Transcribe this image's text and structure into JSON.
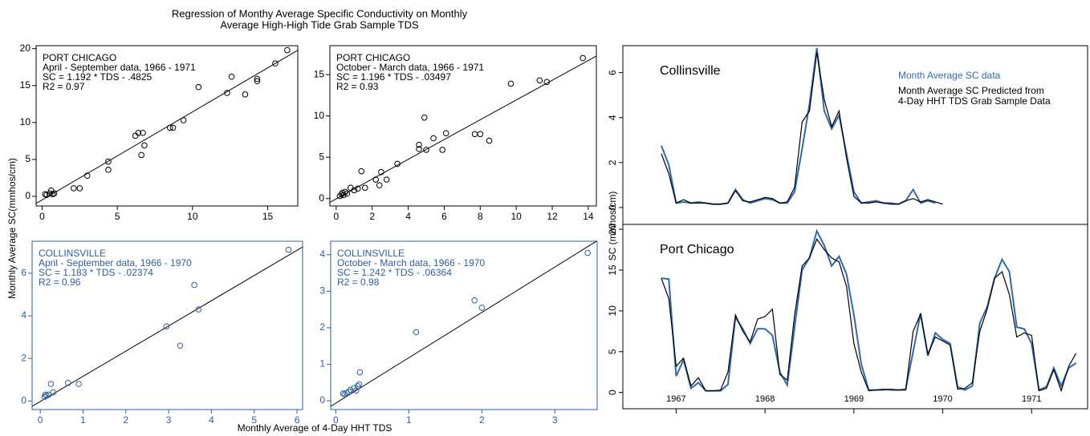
{
  "title": [
    "Regression of Monthy Average Specific Conductivity on Monthly",
    "Average High-High Tide Grab Sample TDS"
  ],
  "y_label": "Monthly Average SC(mmhos/cm)",
  "x_label": "Monthly Average of 4-Day HHT TDS",
  "y_label_right": "SC (mmhos/cm)",
  "chart_data": [
    {
      "type": "scatter",
      "color": "#000000",
      "axis_color": "#000000",
      "annotations": [
        "PORT CHICAGO",
        "April - September data, 1966 - 1971",
        "SC = 1.192 * TDS - .4825",
        "R2 = 0.97"
      ],
      "fit": {
        "slope": 1.192,
        "intercept": -0.4825
      },
      "xlim": [
        -0.4,
        17
      ],
      "ylim": [
        -1.3,
        20.4
      ],
      "xticks": [
        0,
        5,
        10,
        15
      ],
      "yticks": [
        0,
        5,
        10,
        15,
        20
      ],
      "x": [
        0.2,
        0.3,
        0.5,
        0.6,
        0.7,
        0.8,
        2.1,
        2.5,
        3.0,
        4.4,
        4.4,
        6.2,
        6.4,
        6.6,
        6.7,
        6.8,
        8.5,
        8.7,
        9.4,
        10.4,
        12.3,
        12.6,
        13.5,
        14.3,
        14.3,
        15.5,
        16.3
      ],
      "values": [
        0.3,
        0.2,
        0.4,
        0.8,
        0.3,
        0.4,
        1.1,
        1.1,
        2.8,
        3.6,
        4.7,
        8.2,
        8.6,
        5.6,
        8.6,
        6.9,
        9.3,
        9.3,
        10.3,
        14.8,
        14.0,
        16.2,
        13.8,
        15.6,
        15.9,
        18.0,
        19.8
      ]
    },
    {
      "type": "scatter",
      "color": "#000000",
      "axis_color": "#000000",
      "annotations": [
        "PORT CHICAGO",
        "October - March data, 1966 - 1971",
        "SC = 1.196 * TDS - .03497",
        "R2 = 0.93"
      ],
      "fit": {
        "slope": 1.196,
        "intercept": -0.03497
      },
      "xlim": [
        -0.35,
        14.45
      ],
      "ylim": [
        -0.9,
        18.5
      ],
      "xticks": [
        0,
        2,
        4,
        6,
        8,
        10,
        12,
        14
      ],
      "yticks": [
        0,
        5,
        10,
        15
      ],
      "x": [
        0.2,
        0.3,
        0.35,
        0.4,
        0.5,
        0.6,
        0.8,
        1.0,
        1.2,
        1.4,
        1.6,
        2.2,
        2.4,
        2.5,
        2.8,
        3.4,
        4.6,
        4.6,
        4.9,
        5.0,
        5.4,
        5.9,
        6.1,
        7.7,
        8.0,
        8.5,
        9.7,
        11.3,
        11.7,
        13.7
      ],
      "values": [
        0.3,
        0.5,
        0.7,
        0.4,
        0.8,
        0.6,
        1.3,
        1.0,
        1.2,
        3.3,
        1.3,
        2.3,
        1.6,
        3.2,
        2.3,
        4.2,
        6.5,
        6.0,
        9.8,
        5.9,
        7.3,
        5.9,
        7.9,
        7.8,
        7.8,
        7.0,
        13.9,
        14.3,
        14.1,
        17.0
      ]
    },
    {
      "type": "scatter",
      "color": "#2f5f9e",
      "axis_color": "#2f5f9e",
      "annotations": [
        "COLLINSVILLE",
        "April - September data, 1966 - 1970",
        "SC = 1.183 * TDS - .02374",
        "R2 = 0.96"
      ],
      "fit": {
        "slope": 1.183,
        "intercept": -0.02374
      },
      "xlim": [
        -0.19,
        6.13
      ],
      "ylim": [
        -0.4,
        7.5
      ],
      "xticks": [
        0,
        1,
        2,
        3,
        4,
        5,
        6
      ],
      "yticks": [
        0,
        2,
        4,
        6
      ],
      "x": [
        0.1,
        0.12,
        0.15,
        0.2,
        0.25,
        0.3,
        0.65,
        0.9,
        2.95,
        3.27,
        3.6,
        3.7,
        5.8
      ],
      "values": [
        0.2,
        0.3,
        0.25,
        0.3,
        0.8,
        0.4,
        0.85,
        0.8,
        3.5,
        2.6,
        5.45,
        4.3,
        7.1
      ]
    },
    {
      "type": "scatter",
      "color": "#2f5f9e",
      "axis_color": "#2f5f9e",
      "annotations": [
        "COLLINSVILLE",
        "October - March data, 1966 - 1970",
        "SC = 1.242 * TDS - .06364",
        "R2 = 0.98"
      ],
      "fit": {
        "slope": 1.242,
        "intercept": -0.06364
      },
      "xlim": [
        -0.07,
        3.58
      ],
      "ylim": [
        -0.24,
        4.37
      ],
      "xticks": [
        0,
        1,
        2,
        3
      ],
      "yticks": [
        0,
        1,
        2,
        3,
        4
      ],
      "x": [
        0.1,
        0.12,
        0.15,
        0.18,
        0.2,
        0.25,
        0.28,
        0.3,
        0.32,
        0.33,
        1.1,
        1.9,
        2.0,
        3.45
      ],
      "values": [
        0.2,
        0.18,
        0.22,
        0.25,
        0.3,
        0.35,
        0.28,
        0.4,
        0.45,
        0.78,
        1.88,
        2.75,
        2.55,
        4.05
      ]
    },
    {
      "type": "line",
      "label": "Collinsville",
      "legend": "upper right",
      "xlim": [
        1966.4,
        1971.63
      ],
      "ylim": [
        -0.75,
        7.2
      ],
      "yticks": [
        0,
        2,
        4,
        6
      ],
      "x": [
        1966.833,
        1966.917,
        1967.0,
        1967.083,
        1967.167,
        1967.25,
        1967.333,
        1967.417,
        1967.5,
        1967.583,
        1967.667,
        1967.75,
        1967.833,
        1967.917,
        1968.0,
        1968.083,
        1968.167,
        1968.25,
        1968.333,
        1968.417,
        1968.5,
        1968.583,
        1968.667,
        1968.75,
        1968.833,
        1968.917,
        1969.0,
        1969.083,
        1969.167,
        1969.25,
        1969.333,
        1969.417,
        1969.5,
        1969.583,
        1969.667,
        1969.75,
        1969.833,
        1969.917,
        1970.0
      ],
      "series": [
        {
          "name": "Month Average SC data",
          "color": "#2f6aad",
          "values": [
            2.75,
            1.9,
            0.2,
            0.25,
            0.2,
            0.25,
            0.2,
            0.15,
            0.15,
            0.2,
            0.8,
            0.35,
            0.2,
            0.3,
            0.4,
            0.35,
            0.2,
            0.2,
            0.7,
            2.6,
            4.6,
            7.1,
            4.3,
            3.5,
            4.1,
            2.4,
            0.7,
            0.2,
            0.25,
            0.3,
            0.2,
            0.2,
            0.15,
            0.3,
            0.8,
            0.2,
            0.3,
            0.2,
            null
          ]
        },
        {
          "name": "Month Average SC Predicted from\n4-Day HHT TDS Grab Sample Data",
          "color": "#000000",
          "values": [
            2.4,
            1.5,
            0.2,
            0.35,
            0.2,
            0.2,
            0.2,
            0.15,
            0.15,
            0.2,
            0.75,
            0.3,
            0.25,
            0.35,
            0.45,
            0.4,
            0.2,
            0.25,
            0.9,
            3.8,
            4.3,
            6.9,
            4.8,
            3.6,
            4.3,
            2.2,
            0.5,
            0.2,
            0.2,
            0.25,
            0.2,
            0.15,
            0.15,
            0.3,
            0.4,
            0.25,
            0.35,
            0.25,
            0.15
          ]
        }
      ]
    },
    {
      "type": "line",
      "label": "Port Chicago",
      "xlim": [
        1966.4,
        1971.63
      ],
      "ylim": [
        -2,
        20.6
      ],
      "yticks": [
        0,
        5,
        10,
        15,
        20
      ],
      "xticks": [
        1967,
        1968,
        1969,
        1970,
        1971
      ],
      "x": [
        1966.833,
        1966.917,
        1967.0,
        1967.083,
        1967.167,
        1967.25,
        1967.333,
        1967.417,
        1967.5,
        1967.583,
        1967.667,
        1967.75,
        1967.833,
        1967.917,
        1968.0,
        1968.083,
        1968.167,
        1968.25,
        1968.333,
        1968.417,
        1968.5,
        1968.583,
        1968.667,
        1968.75,
        1968.833,
        1968.917,
        1969.0,
        1969.083,
        1969.167,
        1969.25,
        1969.333,
        1969.417,
        1969.5,
        1969.583,
        1969.667,
        1969.75,
        1969.833,
        1969.917,
        1970.0,
        1970.083,
        1970.167,
        1970.25,
        1970.333,
        1970.417,
        1970.5,
        1970.583,
        1970.667,
        1970.75,
        1970.833,
        1970.917,
        1971.0,
        1971.083,
        1971.167,
        1971.25,
        1971.333,
        1971.417,
        1971.5
      ],
      "series": [
        {
          "color": "#2f6aad",
          "values": [
            14,
            13.9,
            2.0,
            4.0,
            0.5,
            1.2,
            0.2,
            0.2,
            0.2,
            1.0,
            9.2,
            7.8,
            6.0,
            7.8,
            7.8,
            7.0,
            2.5,
            0.9,
            8.0,
            15.0,
            16.5,
            19.8,
            18.0,
            15.5,
            16.7,
            14.5,
            9.5,
            3.5,
            0.3,
            0.3,
            0.4,
            0.3,
            0.3,
            0.4,
            5.0,
            9.7,
            4.5,
            7.3,
            6.5,
            6.0,
            0.7,
            0.3,
            0.8,
            8.5,
            10.5,
            14.0,
            16.3,
            14.8,
            8.0,
            7.8,
            6.0,
            0.3,
            0.7,
            3.0,
            0.8,
            3.0,
            3.6
          ]
        },
        {
          "color": "#000000",
          "values": [
            14,
            11.5,
            3.2,
            4.2,
            0.8,
            1.8,
            0.2,
            0.2,
            0.3,
            2.5,
            9.5,
            7.5,
            6.2,
            9.0,
            9.3,
            10.2,
            2.2,
            1.5,
            9.5,
            15.5,
            16.5,
            18.8,
            17.5,
            16.5,
            16.0,
            13.0,
            6.0,
            2.5,
            0.2,
            0.3,
            0.3,
            0.4,
            0.3,
            0.3,
            7.5,
            9.6,
            4.7,
            6.8,
            6.3,
            5.8,
            0.4,
            0.5,
            1.2,
            7.5,
            10.2,
            14.0,
            14.8,
            12.0,
            6.8,
            7.3,
            7.0,
            0.2,
            0.5,
            2.8,
            0.2,
            3.2,
            4.8
          ]
        }
      ]
    }
  ]
}
